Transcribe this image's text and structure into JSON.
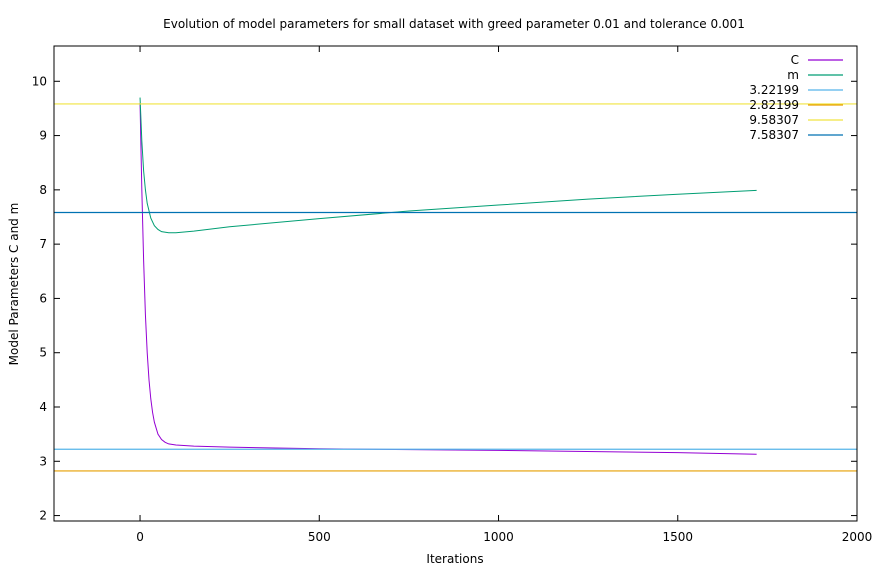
{
  "chart_data": {
    "type": "line",
    "title": "Evolution of model parameters for small dataset with greed parameter 0.01 and tolerance 0.001",
    "xlabel": "Iterations",
    "ylabel": "Model Parameters C and m",
    "xlim": [
      -240,
      2000
    ],
    "ylim": [
      1.9,
      10.65
    ],
    "xticks": [
      0,
      500,
      1000,
      1500,
      2000
    ],
    "yticks": [
      2,
      3,
      4,
      5,
      6,
      7,
      8,
      9,
      10
    ],
    "legend_position": "top-right",
    "grid": false,
    "series": [
      {
        "name": "C",
        "color": "#9400d3",
        "kind": "curve",
        "points": [
          [
            0,
            9.6
          ],
          [
            5,
            8.0
          ],
          [
            10,
            6.7
          ],
          [
            15,
            5.7
          ],
          [
            20,
            5.0
          ],
          [
            25,
            4.5
          ],
          [
            30,
            4.15
          ],
          [
            35,
            3.9
          ],
          [
            40,
            3.72
          ],
          [
            50,
            3.5
          ],
          [
            60,
            3.4
          ],
          [
            70,
            3.35
          ],
          [
            80,
            3.32
          ],
          [
            100,
            3.3
          ],
          [
            150,
            3.28
          ],
          [
            250,
            3.26
          ],
          [
            500,
            3.23
          ],
          [
            1000,
            3.2
          ],
          [
            1500,
            3.16
          ],
          [
            1720,
            3.13
          ]
        ]
      },
      {
        "name": "m",
        "color": "#009e73",
        "kind": "curve",
        "points": [
          [
            0,
            9.7
          ],
          [
            5,
            8.9
          ],
          [
            10,
            8.35
          ],
          [
            15,
            8.0
          ],
          [
            20,
            7.75
          ],
          [
            30,
            7.48
          ],
          [
            40,
            7.34
          ],
          [
            50,
            7.27
          ],
          [
            60,
            7.23
          ],
          [
            80,
            7.21
          ],
          [
            100,
            7.21
          ],
          [
            150,
            7.24
          ],
          [
            250,
            7.32
          ],
          [
            500,
            7.47
          ],
          [
            750,
            7.61
          ],
          [
            1000,
            7.72
          ],
          [
            1250,
            7.83
          ],
          [
            1500,
            7.92
          ],
          [
            1720,
            7.99
          ]
        ]
      },
      {
        "name": "3.22199",
        "color": "#56b4e9",
        "kind": "hline",
        "value": 3.22199
      },
      {
        "name": "2.82199",
        "color": "#e69f00",
        "kind": "hline",
        "value": 2.82199
      },
      {
        "name": "9.58307",
        "color": "#f0e442",
        "kind": "hline",
        "value": 9.58307
      },
      {
        "name": "7.58307",
        "color": "#0072b2",
        "kind": "hline",
        "value": 7.58307
      }
    ]
  }
}
